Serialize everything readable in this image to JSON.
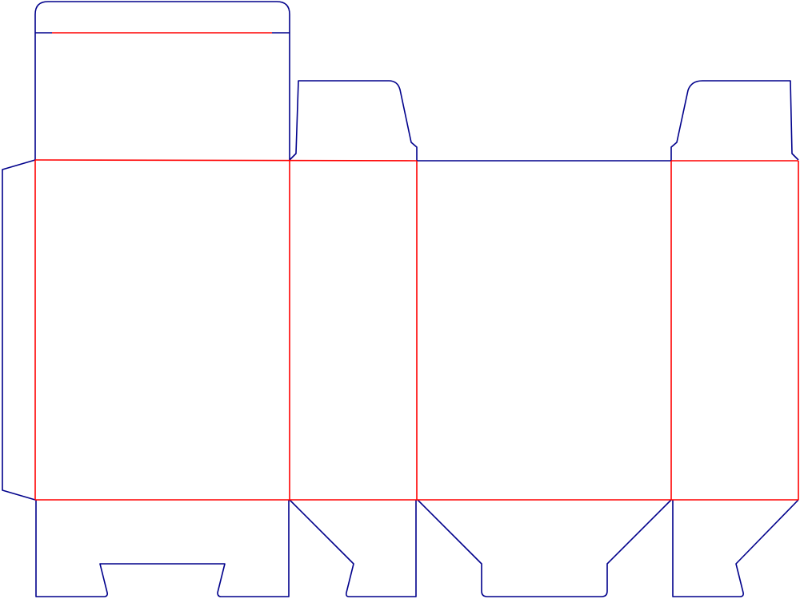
{
  "diagram": {
    "type": "box dieline",
    "colors": {
      "cut_line": "#00008b",
      "fold_line": "#ff0000",
      "background": "#ffffff"
    }
  }
}
